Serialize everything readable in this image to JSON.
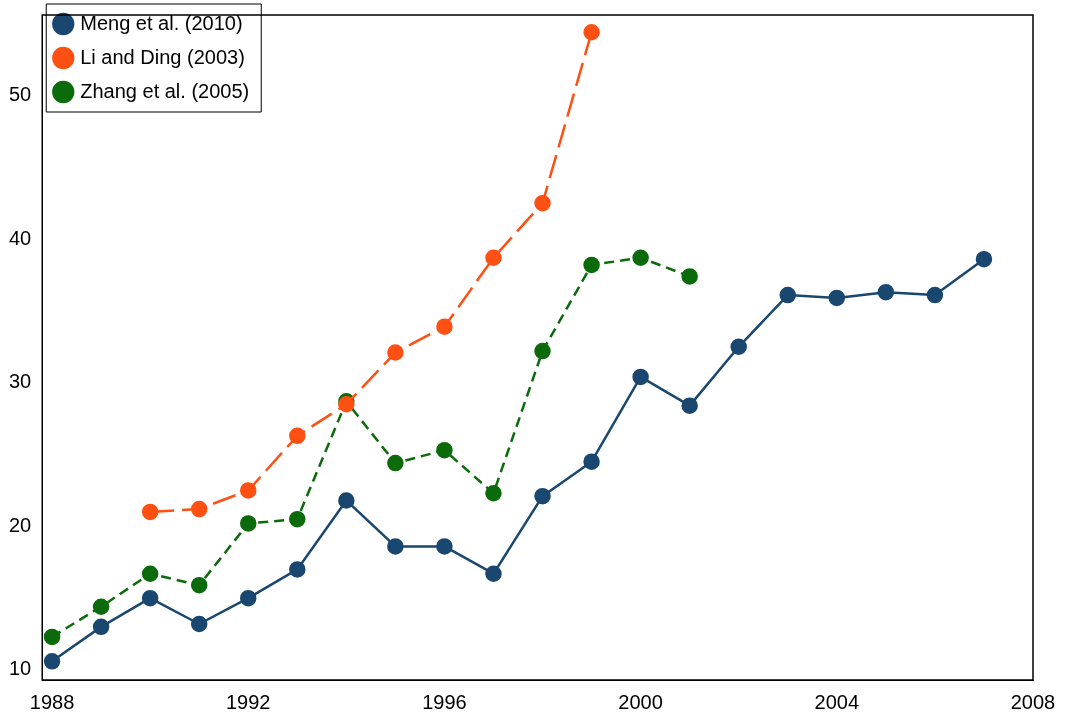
{
  "chart_data": {
    "type": "line",
    "x": [
      1988,
      1989,
      1990,
      1991,
      1992,
      1993,
      1994,
      1995,
      1996,
      1997,
      1998,
      1999,
      2000,
      2001,
      2002,
      2003,
      2004,
      2005,
      2006,
      2007
    ],
    "series": [
      {
        "name": "Zhang et al. (2005)",
        "color": "#0b6b0b",
        "line_style": "dashed",
        "x": [
          1988,
          1989,
          1990,
          1991,
          1992,
          1993,
          1994,
          1995,
          1996,
          1997,
          1998,
          1999,
          2000,
          2001
        ],
        "values": [
          12.3,
          14.4,
          16.7,
          15.9,
          20.2,
          20.5,
          28.7,
          24.4,
          25.3,
          22.3,
          32.2,
          38.2,
          38.7,
          37.4
        ]
      },
      {
        "name": "Li and Ding (2003)",
        "color": "#ff5014",
        "line_style": "dashed",
        "x": [
          1990,
          1991,
          1992,
          1993,
          1994,
          1995,
          1996,
          1997,
          1998,
          1999
        ],
        "values": [
          21.0,
          21.2,
          22.5,
          26.3,
          28.5,
          32.1,
          33.9,
          38.7,
          42.5,
          54.4
        ]
      },
      {
        "name": "Meng et al. (2010)",
        "color": "#1a476f",
        "line_style": "solid",
        "values": [
          10.6,
          13.0,
          15.0,
          13.2,
          15.0,
          17.0,
          21.8,
          18.6,
          18.6,
          16.7,
          22.1,
          24.5,
          30.4,
          28.4,
          32.5,
          36.1,
          35.9,
          36.3,
          36.1,
          38.6
        ]
      }
    ],
    "xlim": [
      1987.8,
      2008
    ],
    "xticks": [
      1988,
      1992,
      1996,
      2000,
      2004,
      2008
    ],
    "ylim": [
      9.3,
      55.6
    ],
    "yticks": [
      10,
      20,
      30,
      40,
      50
    ],
    "grid": false,
    "legend": "top left",
    "marker": "circle"
  }
}
